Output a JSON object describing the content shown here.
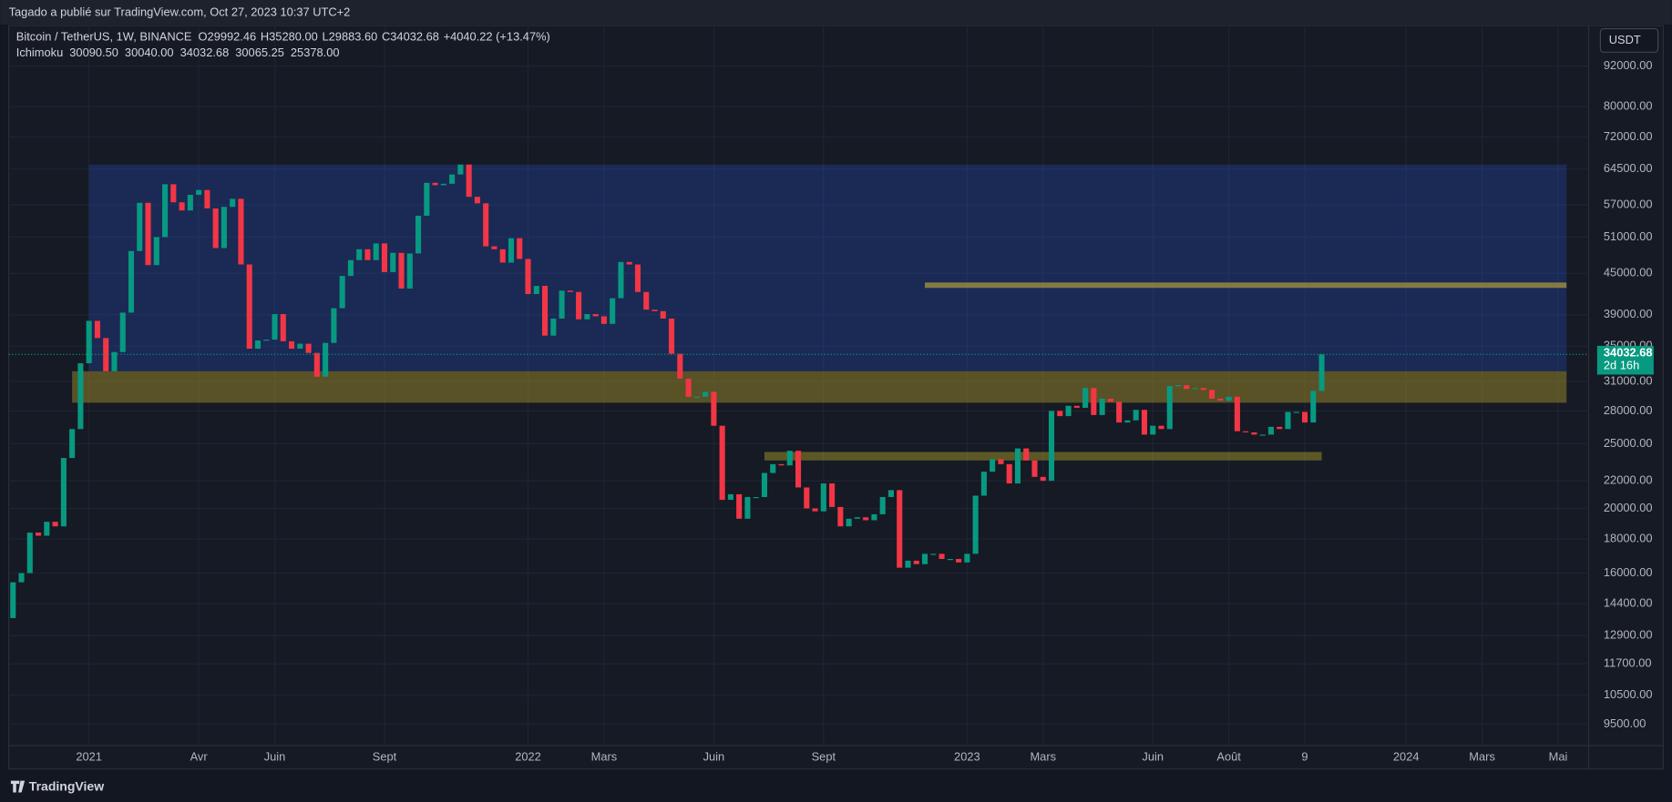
{
  "header": "Tagado a publié sur TradingView.com, Oct 27, 2023 10:37 UTC+2",
  "footer": "TradingView",
  "currency": "USDT",
  "legend": {
    "symbol": "Bitcoin / TetherUS, 1W, BINANCE",
    "ohlc": [
      {
        "key": "O",
        "value": "29992.46"
      },
      {
        "key": "H",
        "value": "35280.00"
      },
      {
        "key": "L",
        "value": "29883.60"
      },
      {
        "key": "C",
        "value": "34032.68"
      }
    ],
    "change": "+4040.22 (+13.47%)",
    "indicator": "Ichimoku",
    "indicator_values": [
      {
        "value": "30090.50",
        "color": "#26c6da"
      },
      {
        "value": "30040.00",
        "color": "#ab47bc"
      },
      {
        "value": "34032.68",
        "color": "#ffffff"
      },
      {
        "value": "30065.25",
        "color": "#a5d6a7"
      },
      {
        "value": "25378.00",
        "color": "#ef9a9a"
      }
    ]
  },
  "price_label": {
    "price": "34032.68",
    "countdown": "2d 16h"
  },
  "chart_data": {
    "type": "candlestick",
    "log_scale": true,
    "grid": true,
    "up_color": "#089981",
    "down_color": "#f23645",
    "first_open": 13700,
    "ylim": [
      8140,
      105800
    ],
    "yticks": [
      {
        "value": 92000,
        "label": "92000.00"
      },
      {
        "value": 80000,
        "label": "80000.00"
      },
      {
        "value": 72000,
        "label": "72000.00"
      },
      {
        "value": 64500,
        "label": "64500.00"
      },
      {
        "value": 57000,
        "label": "57000.00"
      },
      {
        "value": 51000,
        "label": "51000.00"
      },
      {
        "value": 45000,
        "label": "45000.00"
      },
      {
        "value": 39000,
        "label": "39000.00"
      },
      {
        "value": 35000,
        "label": "35000.00"
      },
      {
        "value": 31000,
        "label": "31000.00"
      },
      {
        "value": 28000,
        "label": "28000.00"
      },
      {
        "value": 25000,
        "label": "25000.00"
      },
      {
        "value": 22000,
        "label": "22000.00"
      },
      {
        "value": 20000,
        "label": "20000.00"
      },
      {
        "value": 18000,
        "label": "18000.00"
      },
      {
        "value": 16000,
        "label": "16000.00"
      },
      {
        "value": 14400,
        "label": "14400.00"
      },
      {
        "value": 12900,
        "label": "12900.00"
      },
      {
        "value": 11700,
        "label": "11700.00"
      },
      {
        "value": 10500,
        "label": "10500.00"
      },
      {
        "value": 9500,
        "label": "9500.00"
      }
    ],
    "categories": [
      null,
      null,
      null,
      null,
      null,
      null,
      null,
      null,
      null,
      "2021",
      null,
      null,
      null,
      null,
      null,
      null,
      null,
      null,
      null,
      null,
      null,
      null,
      "Avr",
      null,
      null,
      null,
      null,
      null,
      null,
      null,
      null,
      "Juin",
      null,
      null,
      null,
      null,
      null,
      null,
      null,
      null,
      null,
      null,
      null,
      null,
      "Sept",
      null,
      null,
      null,
      null,
      null,
      null,
      null,
      null,
      null,
      null,
      null,
      null,
      null,
      null,
      null,
      null,
      "2022",
      null,
      null,
      null,
      null,
      null,
      null,
      null,
      null,
      "Mars",
      null,
      null,
      null,
      null,
      null,
      null,
      null,
      null,
      null,
      null,
      null,
      null,
      "Juin",
      null,
      null,
      null,
      null,
      null,
      null,
      null,
      null,
      null,
      null,
      null,
      null,
      "Sept",
      null,
      null,
      null,
      null,
      null,
      null,
      null,
      null,
      null,
      null,
      null,
      null,
      null,
      null,
      null,
      null,
      "2023",
      null,
      null,
      null,
      null,
      null,
      null,
      null,
      null,
      "Mars",
      null,
      null,
      null,
      null,
      null,
      null,
      null,
      null,
      null,
      null,
      null,
      null,
      "Juin",
      null,
      null,
      null,
      null,
      null,
      null,
      null,
      null,
      "Août",
      null,
      null,
      null,
      null,
      null,
      null,
      null,
      null,
      "9",
      null,
      null,
      null,
      null,
      null,
      null,
      null,
      null,
      null,
      null,
      null,
      "2024",
      null,
      null,
      null,
      null,
      null,
      null,
      null,
      null,
      "Mars",
      null,
      null,
      null,
      null,
      null,
      null,
      null,
      null,
      "Mai",
      null,
      null,
      null
    ],
    "values": [
      15500,
      16000,
      18400,
      18200,
      19100,
      18800,
      23800,
      26300,
      33000,
      38200,
      36000,
      32100,
      34300,
      39300,
      48600,
      57400,
      46300,
      51000,
      61200,
      57500,
      55900,
      59000,
      60000,
      56300,
      49100,
      56600,
      58200,
      46400,
      34700,
      35700,
      35800,
      39100,
      35600,
      34700,
      35300,
      34200,
      31500,
      35400,
      39900,
      44600,
      47100,
      48900,
      47100,
      49900,
      45200,
      48300,
      42700,
      48200,
      54900,
      61500,
      61000,
      61300,
      63300,
      65500,
      58600,
      57300,
      49400,
      48900,
      46700,
      50800,
      47300,
      41900,
      43100,
      36300,
      38500,
      42400,
      42200,
      38400,
      39100,
      38800,
      37800,
      41300,
      46800,
      46400,
      42200,
      39700,
      39500,
      38500,
      34100,
      31300,
      29400,
      29400,
      29900,
      26600,
      20600,
      21000,
      19300,
      20800,
      20800,
      22600,
      23300,
      23200,
      24400,
      21500,
      20000,
      19800,
      21800,
      20100,
      18800,
      19300,
      19400,
      19200,
      19600,
      20800,
      21300,
      16300,
      16700,
      16500,
      17100,
      17100,
      16800,
      16800,
      16600,
      17100,
      20900,
      22700,
      23700,
      23300,
      21800,
      24600,
      23600,
      22300,
      22000,
      28000,
      27500,
      28500,
      28300,
      30300,
      27600,
      29200,
      28900,
      26900,
      27100,
      28100,
      25800,
      26600,
      26300,
      30500,
      30600,
      30200,
      30300,
      30100,
      29200,
      29000,
      29400,
      26100,
      26000,
      25800,
      25800,
      26500,
      26300,
      27900,
      27900,
      26900,
      30000,
      34032.68,
      null,
      null,
      null,
      null,
      null,
      null,
      null,
      null,
      null,
      null,
      null,
      null,
      null,
      null,
      null,
      null,
      null,
      null,
      null,
      null,
      null,
      null,
      null,
      null,
      null,
      null,
      null,
      null,
      null,
      null,
      null
    ],
    "zones": [
      {
        "from": 9,
        "to": 184,
        "low": 32100,
        "high": 65500,
        "color": "rgba(41,98,255,0.22)"
      },
      {
        "from": 7,
        "to": 184,
        "low": 28800,
        "high": 32100,
        "color": "rgba(170,150,40,0.45)"
      },
      {
        "from": 108,
        "to": 184,
        "low": 42800,
        "high": 43600,
        "color": "rgba(170,150,60,0.75)"
      },
      {
        "from": 89,
        "to": 155,
        "low": 23600,
        "high": 24300,
        "color": "rgba(150,140,40,0.55)"
      }
    ]
  }
}
